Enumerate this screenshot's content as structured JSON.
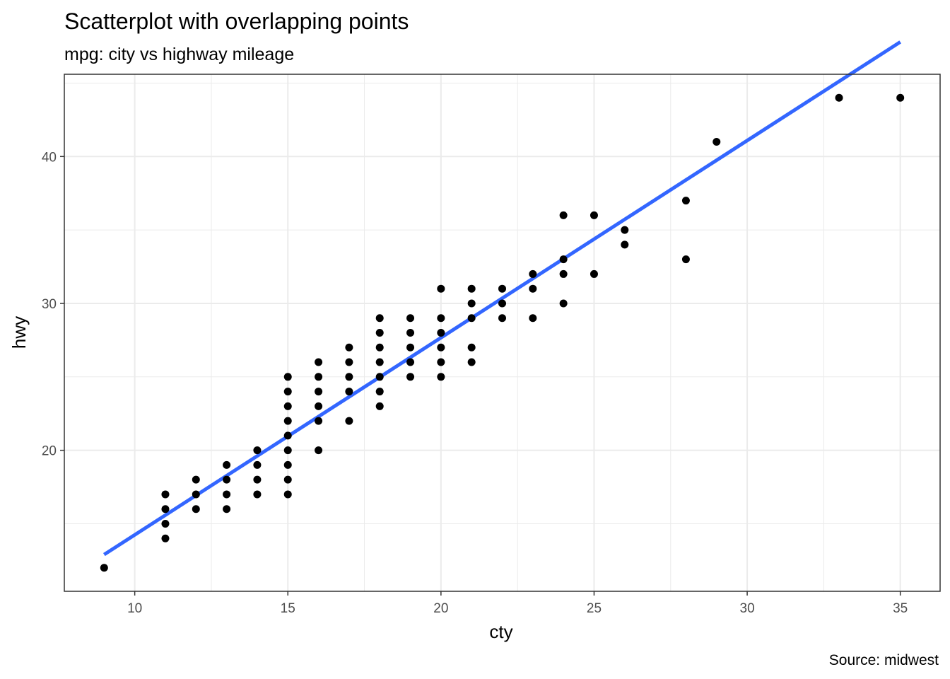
{
  "chart_data": {
    "type": "scatter",
    "title": "Scatterplot with overlapping points",
    "subtitle": "mpg: city vs highway mileage",
    "caption": "Source: midwest",
    "xlabel": "cty",
    "ylabel": "hwy",
    "xlim": [
      7.7,
      36.3
    ],
    "ylim": [
      10.4,
      45.6
    ],
    "x_ticks": [
      10,
      15,
      20,
      25,
      30,
      35
    ],
    "y_ticks": [
      20,
      30,
      40
    ],
    "grid": true,
    "points": [
      [
        9,
        12
      ],
      [
        11,
        14
      ],
      [
        11,
        15
      ],
      [
        11,
        16
      ],
      [
        11,
        17
      ],
      [
        12,
        16
      ],
      [
        12,
        17
      ],
      [
        12,
        18
      ],
      [
        13,
        16
      ],
      [
        13,
        17
      ],
      [
        13,
        18
      ],
      [
        13,
        19
      ],
      [
        14,
        17
      ],
      [
        14,
        18
      ],
      [
        14,
        19
      ],
      [
        14,
        20
      ],
      [
        15,
        17
      ],
      [
        15,
        18
      ],
      [
        15,
        19
      ],
      [
        15,
        20
      ],
      [
        15,
        21
      ],
      [
        15,
        22
      ],
      [
        15,
        23
      ],
      [
        15,
        24
      ],
      [
        15,
        25
      ],
      [
        16,
        20
      ],
      [
        16,
        22
      ],
      [
        16,
        23
      ],
      [
        16,
        24
      ],
      [
        16,
        25
      ],
      [
        16,
        26
      ],
      [
        17,
        22
      ],
      [
        17,
        24
      ],
      [
        17,
        25
      ],
      [
        17,
        26
      ],
      [
        17,
        27
      ],
      [
        18,
        23
      ],
      [
        18,
        24
      ],
      [
        18,
        25
      ],
      [
        18,
        26
      ],
      [
        18,
        27
      ],
      [
        18,
        28
      ],
      [
        18,
        29
      ],
      [
        19,
        25
      ],
      [
        19,
        26
      ],
      [
        19,
        27
      ],
      [
        19,
        28
      ],
      [
        19,
        29
      ],
      [
        20,
        25
      ],
      [
        20,
        26
      ],
      [
        20,
        27
      ],
      [
        20,
        28
      ],
      [
        20,
        29
      ],
      [
        20,
        31
      ],
      [
        21,
        26
      ],
      [
        21,
        27
      ],
      [
        21,
        29
      ],
      [
        21,
        30
      ],
      [
        21,
        31
      ],
      [
        22,
        29
      ],
      [
        22,
        30
      ],
      [
        22,
        31
      ],
      [
        23,
        29
      ],
      [
        23,
        31
      ],
      [
        23,
        32
      ],
      [
        24,
        30
      ],
      [
        24,
        32
      ],
      [
        24,
        33
      ],
      [
        24,
        36
      ],
      [
        25,
        32
      ],
      [
        25,
        36
      ],
      [
        26,
        34
      ],
      [
        26,
        35
      ],
      [
        28,
        33
      ],
      [
        28,
        37
      ],
      [
        29,
        41
      ],
      [
        33,
        44
      ],
      [
        35,
        44
      ]
    ],
    "fit_line": {
      "type": "linear",
      "x": [
        9,
        35
      ],
      "y": [
        12.9,
        47.8
      ],
      "color": "#3366FF"
    },
    "point_color": "#000000"
  }
}
